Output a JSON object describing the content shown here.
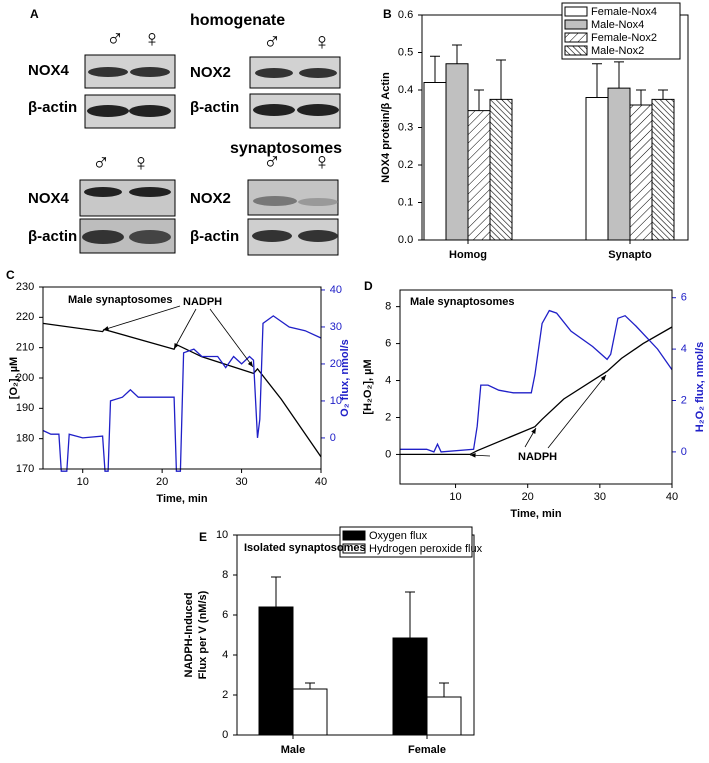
{
  "panel_labels": [
    "A",
    "B",
    "C",
    "D",
    "E"
  ],
  "blots": [
    {
      "title": "homogenate",
      "symbols": [
        "♂",
        "♀",
        "♂",
        "♀"
      ],
      "labels": [
        "NOX4",
        "β-actin",
        "NOX2",
        "β-actin"
      ]
    },
    {
      "title": "synaptosomes",
      "symbols": [
        "♂",
        "♀",
        "♂",
        "♀"
      ],
      "labels": [
        "NOX4",
        "β-actin",
        "NOX2",
        "β-actin"
      ]
    }
  ],
  "chart_data": [
    {
      "type": "bar",
      "y_label": "NOX4 protein/β Actin",
      "categories": [
        "Homog",
        "Synapto"
      ],
      "series": [
        {
          "name": "Female-Nox4",
          "color": "#ffffff",
          "values": [
            0.42,
            0.38
          ],
          "errors": [
            0.07,
            0.09
          ]
        },
        {
          "name": "Male-Nox4",
          "color": "#c0c0c0",
          "values": [
            0.47,
            0.405
          ],
          "errors": [
            0.05,
            0.07
          ]
        },
        {
          "name": "Female-Nox2",
          "color": "#ffffff",
          "hatch": "forward",
          "values": [
            0.345,
            0.36
          ],
          "errors": [
            0.055,
            0.04
          ]
        },
        {
          "name": "Male-Nox2",
          "color": "#ffffff",
          "hatch": "back",
          "values": [
            0.375,
            0.375
          ],
          "errors": [
            0.105,
            0.025
          ]
        }
      ],
      "ylim": [
        0,
        0.6
      ],
      "yticks": [
        {
          "value": 0,
          "label": "0.0"
        },
        0.1,
        0.2,
        0.3,
        0.4,
        0.5,
        0.6
      ],
      "legend": "top-right"
    },
    {
      "type": "line",
      "x_label": "Time, min",
      "y_label": "[O₂], µM",
      "y2_label": "O₂ flux, nmol/s",
      "annotations": [
        "Male synaptosomes",
        "NADPH"
      ],
      "series": [
        {
          "color": "#000000",
          "x": [
            5,
            12.5,
            12.7,
            21.5,
            21.8,
            25,
            31.5,
            32,
            35,
            40
          ],
          "values": [
            218,
            215.3,
            216,
            209.5,
            211,
            207,
            201.5,
            203,
            193,
            174
          ]
        },
        {
          "color": "#2020c8",
          "axis": "y2",
          "x": [
            5,
            6,
            7,
            7.3,
            8,
            8.3,
            10,
            12.5,
            12.8,
            13.2,
            13.5,
            15,
            16,
            17,
            20,
            21.5,
            21.8,
            22.3,
            22.7,
            24,
            25,
            27,
            28,
            29,
            30,
            31,
            31.5,
            32,
            32.3,
            32.7,
            34,
            36,
            38,
            40
          ],
          "values": [
            2,
            1,
            1,
            -9,
            -9,
            1,
            0,
            0.5,
            -9,
            -9,
            10,
            11,
            13,
            11,
            11,
            11,
            -9,
            -9,
            23,
            24,
            22,
            22,
            19,
            22,
            20,
            22,
            21,
            0,
            5,
            31,
            33,
            30,
            29,
            27
          ]
        }
      ],
      "xlim": [
        5,
        40
      ],
      "xticks": [
        10,
        20,
        30,
        40
      ],
      "ylim": [
        170,
        230
      ],
      "yticks": [
        170,
        180,
        190,
        200,
        210,
        220,
        230
      ],
      "y2lim": [
        -8.4,
        40.8
      ],
      "y2ticks": [
        0,
        10,
        20,
        30,
        40
      ]
    },
    {
      "type": "line",
      "x_label": "Time, min",
      "y_label": "[H₂O₂], µM",
      "y2_label": "H₂O₂ flux, nmol/s",
      "annotations": [
        "Male synaptosomes",
        "NADPH"
      ],
      "series": [
        {
          "color": "#000000",
          "x": [
            2.3,
            12,
            13,
            21,
            22,
            25,
            31,
            33,
            36,
            40
          ],
          "values": [
            0,
            0,
            0.2,
            1.5,
            1.9,
            3,
            4.5,
            5.2,
            6,
            6.9
          ]
        },
        {
          "color": "#2020c8",
          "axis": "y2",
          "x": [
            2.3,
            6,
            7,
            7.5,
            8,
            12.5,
            13,
            13.5,
            14.5,
            16,
            18,
            20.5,
            21,
            22,
            23,
            24,
            26,
            29,
            31,
            31.5,
            32.5,
            33.5,
            35,
            38,
            40
          ],
          "values": [
            0.1,
            0.1,
            0,
            0.3,
            0,
            0.1,
            1,
            2.6,
            2.6,
            2.4,
            2.3,
            2.3,
            3,
            5,
            5.5,
            5.4,
            4.7,
            4.1,
            3.6,
            3.8,
            5.2,
            5.3,
            4.9,
            4,
            3.2
          ]
        }
      ],
      "xlim": [
        2.3,
        40
      ],
      "xticks": [
        10,
        20,
        30,
        40
      ],
      "ylim": [
        -1.6,
        8.9
      ],
      "yticks": [
        0,
        2,
        4,
        6,
        8
      ],
      "y2lim": [
        -1.25,
        6.3
      ],
      "y2ticks": [
        0,
        2,
        4,
        6
      ]
    },
    {
      "type": "bar",
      "y_label": [
        "NADPH-Induced",
        "Flux per V (nM/s)"
      ],
      "annotations": [
        "Isolated synaptosomes"
      ],
      "categories": [
        "Male",
        "Female"
      ],
      "series": [
        {
          "name": "Oxygen flux",
          "color": "#000000",
          "values": [
            6.4,
            4.85
          ],
          "errors": [
            1.5,
            2.3
          ]
        },
        {
          "name": "Hydrogen peroxide flux",
          "color": "#ffffff",
          "values": [
            2.3,
            1.9
          ],
          "errors": [
            0.3,
            0.7
          ]
        }
      ],
      "ylim": [
        0,
        10
      ],
      "yticks": [
        0,
        2,
        4,
        6,
        8,
        10
      ],
      "legend": "top-right"
    }
  ]
}
